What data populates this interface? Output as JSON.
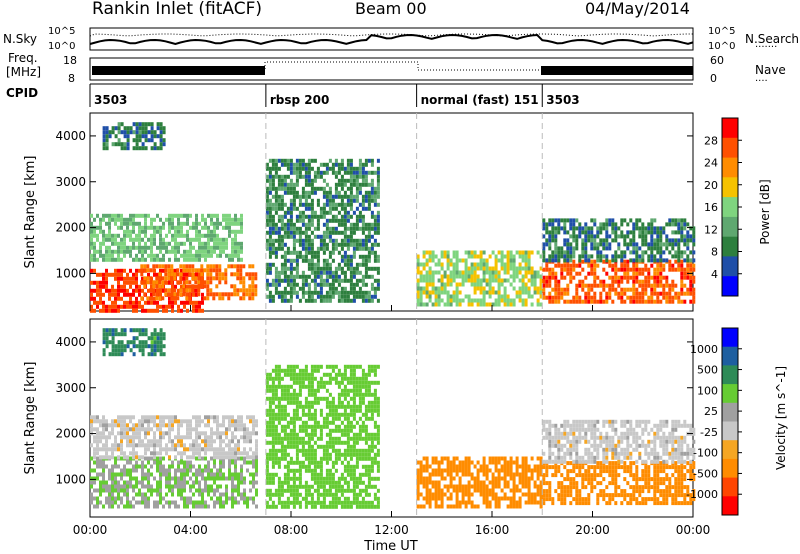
{
  "header": {
    "title": "Rankin Inlet (fitACF)",
    "beam": "Beam 00",
    "date": "04/May/2014"
  },
  "side_labels": {
    "nsky": "N.Sky",
    "nsearch": "N.Search",
    "freq": "Freq.",
    "mhz": "[MHz]",
    "nave": "Nave",
    "cpid": "CPID",
    "pow_exp_top": "10^5",
    "pow_exp_bottom": "10^0",
    "freq_top": "18",
    "freq_bottom": "8",
    "nave_top": "60",
    "nave_bottom": "0"
  },
  "cpid_segments": [
    {
      "label": "3503",
      "start_hour": 0
    },
    {
      "label": "rbsp 200",
      "start_hour": 7
    },
    {
      "label": "normal (fast) 151",
      "start_hour": 13
    },
    {
      "label": "3503",
      "start_hour": 18
    }
  ],
  "colors": {
    "power": [
      "#0000ff",
      "#1f4fa8",
      "#2d7f3e",
      "#5fa870",
      "#7fd47f",
      "#f5c200",
      "#ff8c00",
      "#ff5000",
      "#ff0000"
    ],
    "velocity": [
      "#ff0000",
      "#ff4500",
      "#ff8c00",
      "#f5a623",
      "#c8c8c8",
      "#a0a0a0",
      "#66cc33",
      "#2e8b57",
      "#1e5fa0",
      "#0000ff"
    ]
  },
  "chart_data": [
    {
      "type": "heatmap",
      "title": "Power",
      "xlabel": "",
      "ylabel": "Slant Range [km]",
      "x_ticks": [
        "00:00",
        "04:00",
        "08:00",
        "12:00",
        "16:00",
        "20:00",
        "00:00"
      ],
      "xlim_hours": [
        0,
        24
      ],
      "ylim": [
        180,
        4500
      ],
      "y_ticks": [
        1000,
        2000,
        3000,
        4000
      ],
      "colorbar_label": "Power [dB]",
      "colorbar_ticks": [
        "28",
        "24",
        "20",
        "16",
        "12",
        "8",
        "4"
      ],
      "colorbar_range": [
        0,
        30
      ],
      "regions": [
        {
          "t0": 0.0,
          "t1": 4.5,
          "r0": 200,
          "r1": 1100,
          "level": 27
        },
        {
          "t0": 2.0,
          "t1": 6.6,
          "r0": 500,
          "r1": 1200,
          "level": 24
        },
        {
          "t0": 0.0,
          "t1": 6.0,
          "r0": 1300,
          "r1": 2300,
          "level": 14
        },
        {
          "t0": 0.5,
          "t1": 3.0,
          "r0": 3700,
          "r1": 4300,
          "level": 8
        },
        {
          "t0": 7.0,
          "t1": 11.5,
          "r0": 400,
          "r1": 3500,
          "level": 9
        },
        {
          "t0": 13.0,
          "t1": 18.0,
          "r0": 300,
          "r1": 1500,
          "level": 16
        },
        {
          "t0": 18.0,
          "t1": 24.0,
          "r0": 400,
          "r1": 1300,
          "level": 25
        },
        {
          "t0": 18.0,
          "t1": 24.0,
          "r0": 1300,
          "r1": 2200,
          "level": 8
        }
      ]
    },
    {
      "type": "heatmap",
      "title": "Velocity",
      "xlabel": "Time UT",
      "ylabel": "Slant Range [km]",
      "x_ticks": [
        "00:00",
        "04:00",
        "08:00",
        "12:00",
        "16:00",
        "20:00",
        "00:00"
      ],
      "xlim_hours": [
        0,
        24
      ],
      "ylim": [
        180,
        4500
      ],
      "y_ticks": [
        1000,
        2000,
        3000,
        4000
      ],
      "colorbar_label": "Velocity [m s^-1]",
      "colorbar_ticks": [
        "1000",
        "500",
        "100",
        "25",
        "-25",
        "-100",
        "-500",
        "-1000"
      ],
      "regions": [
        {
          "t0": 0.0,
          "t1": 6.6,
          "r0": 400,
          "r1": 1500,
          "level": 100
        },
        {
          "t0": 0.0,
          "t1": 6.6,
          "r0": 1500,
          "r1": 2400,
          "level": 0
        },
        {
          "t0": 0.5,
          "t1": 3.0,
          "r0": 3700,
          "r1": 4300,
          "level": 800
        },
        {
          "t0": 7.0,
          "t1": 11.5,
          "r0": 400,
          "r1": 3500,
          "level": 200
        },
        {
          "t0": 13.0,
          "t1": 18.0,
          "r0": 400,
          "r1": 1500,
          "level": -300
        },
        {
          "t0": 18.0,
          "t1": 24.0,
          "r0": 500,
          "r1": 1400,
          "level": -300
        },
        {
          "t0": 18.0,
          "t1": 24.0,
          "r0": 1400,
          "r1": 2300,
          "level": 0
        }
      ]
    }
  ]
}
